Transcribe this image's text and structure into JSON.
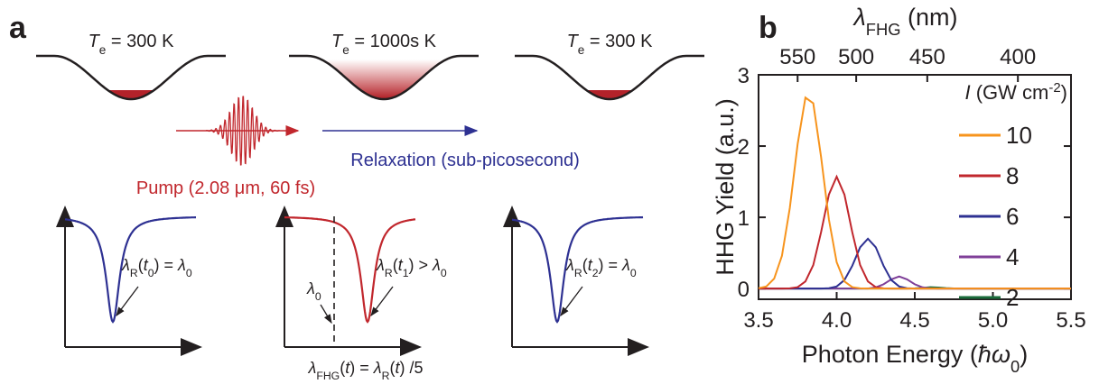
{
  "panel_a": {
    "label": "a",
    "wells": [
      {
        "label": [
          "T",
          "e",
          " = 300 K"
        ]
      },
      {
        "label": [
          "T",
          "e",
          " = 1000s K"
        ]
      },
      {
        "label": [
          "T",
          "e",
          " = 300 K"
        ]
      }
    ],
    "pump_label": "Pump (2.08 μm, 60 fs)",
    "relaxation_label": "Relaxation (sub-picosecond)",
    "plots": [
      {
        "label": [
          "λ",
          "R",
          "(",
          "t",
          "0",
          ") = ",
          "λ",
          "0"
        ]
      },
      {
        "label": [
          "λ",
          "R",
          "(",
          "t",
          "1",
          ") > ",
          "λ",
          "0"
        ],
        "ref_label": [
          "λ",
          "0"
        ]
      },
      {
        "label": [
          "λ",
          "R",
          "(",
          "t",
          "2",
          ") = ",
          "λ",
          "0"
        ]
      }
    ],
    "formula": [
      "λ",
      "FHG",
      "(",
      "t",
      ") = ",
      "λ",
      "R",
      "(",
      "t",
      ") /5"
    ]
  },
  "chart_data": {
    "type": "line",
    "label": "b",
    "xlabel": [
      "Photon Energy (",
      "ħω",
      "0",
      ")"
    ],
    "ylabel": "HHG Yield (a.u.)",
    "x2label": [
      "λ",
      "FHG",
      " (nm)"
    ],
    "legend_title": [
      "I",
      " (GW cm",
      "-2",
      ")"
    ],
    "legend": "upper right",
    "xlim": [
      3.5,
      5.5
    ],
    "xticks": [
      3.5,
      {
        "value": 4,
        "label": "4.0"
      },
      4.5,
      {
        "value": 5,
        "label": "5.0"
      },
      5.5
    ],
    "x2ticks": [
      {
        "value": 3.75,
        "label": "550"
      },
      {
        "value": 4.125,
        "label": "500"
      },
      {
        "value": 4.58,
        "label": "450"
      },
      {
        "value": 5.16,
        "label": "400"
      }
    ],
    "ylim": [
      -0.15,
      3
    ],
    "yticks": [
      0,
      1,
      2,
      3
    ],
    "x": [
      3.5,
      3.55,
      3.6,
      3.65,
      3.7,
      3.75,
      3.8,
      3.85,
      3.9,
      3.95,
      4.0,
      4.05,
      4.1,
      4.15,
      4.2,
      4.25,
      4.3,
      4.35,
      4.4,
      4.45,
      4.5,
      4.55,
      4.6,
      4.65,
      4.7,
      4.75,
      4.8,
      4.85,
      4.9,
      4.95,
      5.0,
      5.05,
      5.1,
      5.15,
      5.2,
      5.25,
      5.3,
      5.35,
      5.4,
      5.45,
      5.5
    ],
    "series": [
      {
        "name": "10",
        "color": "#f7941d",
        "values": [
          0.005,
          0.03,
          0.14,
          0.46,
          1.13,
          2.03,
          2.68,
          2.6,
          1.85,
          0.97,
          0.37,
          0.1,
          0.02,
          0.003,
          0,
          0,
          0,
          0,
          0,
          0,
          0,
          0,
          0,
          0,
          0,
          0,
          0,
          0,
          0,
          0,
          0,
          0,
          0,
          0,
          0,
          0,
          0,
          0,
          0,
          0,
          0
        ]
      },
      {
        "name": "8",
        "color": "#c1272d",
        "values": [
          0,
          0,
          0,
          0,
          0.003,
          0.02,
          0.1,
          0.33,
          0.79,
          1.32,
          1.57,
          1.32,
          0.79,
          0.33,
          0.1,
          0.02,
          0.003,
          0,
          0,
          0,
          0,
          0,
          0,
          0,
          0,
          0,
          0,
          0,
          0,
          0,
          0,
          0,
          0,
          0,
          0,
          0,
          0,
          0,
          0,
          0,
          0
        ]
      },
      {
        "name": "6",
        "color": "#2e3192",
        "values": [
          0,
          0,
          0,
          0,
          0,
          0,
          0,
          0,
          0,
          0.005,
          0.03,
          0.12,
          0.32,
          0.58,
          0.7,
          0.58,
          0.32,
          0.12,
          0.03,
          0.005,
          0,
          0,
          0,
          0,
          0,
          0,
          0,
          0,
          0,
          0,
          0,
          0,
          0,
          0,
          0,
          0,
          0,
          0,
          0,
          0,
          0
        ]
      },
      {
        "name": "4",
        "color": "#7f3f98",
        "values": [
          0,
          0,
          0,
          0,
          0,
          0,
          0,
          0,
          0,
          0,
          0,
          0,
          0,
          0,
          0,
          0.017,
          0.06,
          0.13,
          0.17,
          0.13,
          0.06,
          0.017,
          0.003,
          0,
          0,
          0,
          0,
          0,
          0,
          0,
          0,
          0,
          0,
          0,
          0,
          0,
          0,
          0,
          0,
          0,
          0
        ]
      },
      {
        "name": "2",
        "color": "#1a6b3a",
        "values": [
          0,
          0,
          0,
          0,
          0,
          0,
          0,
          0,
          0,
          0,
          0,
          0,
          0,
          0,
          0,
          0,
          0,
          0,
          0,
          0,
          0.003,
          0.01,
          0.02,
          0.015,
          0.007,
          0.002,
          0,
          0,
          0,
          0,
          0,
          0,
          0,
          0,
          0,
          0,
          0,
          0,
          0,
          0,
          0
        ]
      }
    ]
  }
}
